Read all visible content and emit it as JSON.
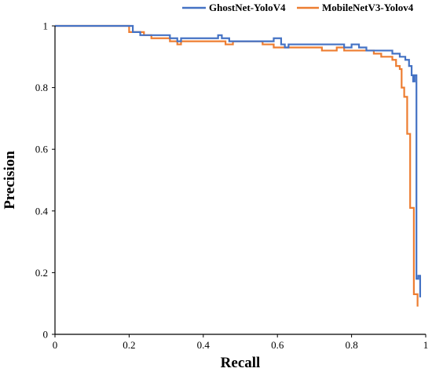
{
  "chart_data": {
    "type": "line",
    "title": "",
    "xlabel": "Recall",
    "ylabel": "Precision",
    "xlim": [
      0,
      1
    ],
    "ylim": [
      0,
      1
    ],
    "x_ticks": [
      "0",
      "0.2",
      "0.4",
      "0.6",
      "0.8",
      "1"
    ],
    "y_ticks": [
      "0",
      "0.2",
      "0.4",
      "0.6",
      "0.8",
      "1"
    ],
    "grid": false,
    "legend_position": "top-right",
    "series": [
      {
        "name": "GhostNet-YoloV4",
        "color": "#4472c4",
        "step": true,
        "points": [
          [
            0,
            1
          ],
          [
            0.21,
            1
          ],
          [
            0.21,
            0.98
          ],
          [
            0.23,
            0.98
          ],
          [
            0.23,
            0.97
          ],
          [
            0.31,
            0.97
          ],
          [
            0.31,
            0.96
          ],
          [
            0.33,
            0.96
          ],
          [
            0.33,
            0.95
          ],
          [
            0.34,
            0.95
          ],
          [
            0.34,
            0.96
          ],
          [
            0.44,
            0.96
          ],
          [
            0.44,
            0.97
          ],
          [
            0.45,
            0.97
          ],
          [
            0.45,
            0.96
          ],
          [
            0.47,
            0.96
          ],
          [
            0.47,
            0.95
          ],
          [
            0.59,
            0.95
          ],
          [
            0.59,
            0.96
          ],
          [
            0.61,
            0.96
          ],
          [
            0.61,
            0.94
          ],
          [
            0.62,
            0.94
          ],
          [
            0.62,
            0.93
          ],
          [
            0.63,
            0.93
          ],
          [
            0.63,
            0.94
          ],
          [
            0.78,
            0.94
          ],
          [
            0.78,
            0.93
          ],
          [
            0.8,
            0.93
          ],
          [
            0.8,
            0.94
          ],
          [
            0.82,
            0.94
          ],
          [
            0.82,
            0.93
          ],
          [
            0.84,
            0.93
          ],
          [
            0.84,
            0.92
          ],
          [
            0.91,
            0.92
          ],
          [
            0.91,
            0.91
          ],
          [
            0.93,
            0.91
          ],
          [
            0.93,
            0.9
          ],
          [
            0.945,
            0.9
          ],
          [
            0.945,
            0.89
          ],
          [
            0.955,
            0.89
          ],
          [
            0.955,
            0.87
          ],
          [
            0.962,
            0.87
          ],
          [
            0.962,
            0.84
          ],
          [
            0.966,
            0.84
          ],
          [
            0.966,
            0.82
          ],
          [
            0.97,
            0.82
          ],
          [
            0.97,
            0.84
          ],
          [
            0.975,
            0.84
          ],
          [
            0.975,
            0.18
          ],
          [
            0.98,
            0.18
          ],
          [
            0.98,
            0.19
          ],
          [
            0.985,
            0.19
          ],
          [
            0.985,
            0.12
          ]
        ]
      },
      {
        "name": "MobileNetV3-Yolov4",
        "color": "#ed7d31",
        "step": true,
        "points": [
          [
            0,
            1
          ],
          [
            0.2,
            1
          ],
          [
            0.2,
            0.98
          ],
          [
            0.24,
            0.98
          ],
          [
            0.24,
            0.97
          ],
          [
            0.26,
            0.97
          ],
          [
            0.26,
            0.96
          ],
          [
            0.31,
            0.96
          ],
          [
            0.31,
            0.95
          ],
          [
            0.33,
            0.95
          ],
          [
            0.33,
            0.94
          ],
          [
            0.34,
            0.94
          ],
          [
            0.34,
            0.95
          ],
          [
            0.46,
            0.95
          ],
          [
            0.46,
            0.94
          ],
          [
            0.48,
            0.94
          ],
          [
            0.48,
            0.95
          ],
          [
            0.56,
            0.95
          ],
          [
            0.56,
            0.94
          ],
          [
            0.59,
            0.94
          ],
          [
            0.59,
            0.93
          ],
          [
            0.72,
            0.93
          ],
          [
            0.72,
            0.92
          ],
          [
            0.76,
            0.92
          ],
          [
            0.76,
            0.93
          ],
          [
            0.78,
            0.93
          ],
          [
            0.78,
            0.92
          ],
          [
            0.86,
            0.92
          ],
          [
            0.86,
            0.91
          ],
          [
            0.88,
            0.91
          ],
          [
            0.88,
            0.9
          ],
          [
            0.91,
            0.9
          ],
          [
            0.91,
            0.89
          ],
          [
            0.92,
            0.89
          ],
          [
            0.92,
            0.87
          ],
          [
            0.93,
            0.87
          ],
          [
            0.93,
            0.86
          ],
          [
            0.935,
            0.86
          ],
          [
            0.935,
            0.8
          ],
          [
            0.942,
            0.8
          ],
          [
            0.942,
            0.77
          ],
          [
            0.95,
            0.77
          ],
          [
            0.95,
            0.65
          ],
          [
            0.958,
            0.65
          ],
          [
            0.958,
            0.41
          ],
          [
            0.968,
            0.41
          ],
          [
            0.968,
            0.13
          ],
          [
            0.978,
            0.13
          ],
          [
            0.978,
            0.09
          ]
        ]
      }
    ]
  }
}
